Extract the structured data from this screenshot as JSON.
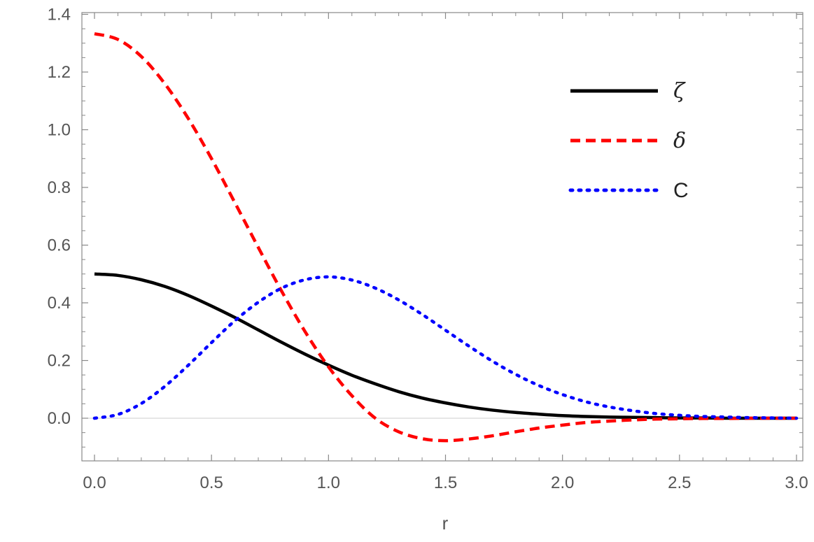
{
  "chart_data": {
    "type": "line",
    "title": "",
    "xlabel": "r",
    "ylabel": "",
    "xlim": [
      0,
      3
    ],
    "ylim": [
      -0.15,
      1.4
    ],
    "xticks": [
      "0.0",
      "0.5",
      "1.0",
      "1.5",
      "2.0",
      "2.5",
      "3.0"
    ],
    "yticks": [
      "0.0",
      "0.2",
      "0.4",
      "0.6",
      "0.8",
      "1.0",
      "1.2",
      "1.4"
    ],
    "grid": false,
    "legend_position": "top-right",
    "x": [
      0,
      0.1,
      0.2,
      0.3,
      0.4,
      0.5,
      0.6,
      0.7,
      0.8,
      0.9,
      1.0,
      1.1,
      1.2,
      1.3,
      1.4,
      1.5,
      1.6,
      1.7,
      1.8,
      1.9,
      2.0,
      2.1,
      2.2,
      2.3,
      2.4,
      2.5,
      2.6,
      2.7,
      2.8,
      2.9,
      3.0
    ],
    "series": [
      {
        "name": "ζ",
        "color": "#000000",
        "style": "solid",
        "values": [
          0.5,
          0.495,
          0.48,
          0.457,
          0.426,
          0.389,
          0.349,
          0.306,
          0.263,
          0.222,
          0.184,
          0.149,
          0.119,
          0.092,
          0.07,
          0.053,
          0.039,
          0.028,
          0.02,
          0.014,
          0.009,
          0.006,
          0.004,
          0.003,
          0.002,
          0.001,
          0.001,
          0.0,
          0.0,
          0.0,
          0.0
        ]
      },
      {
        "name": "δ",
        "color": "#ff0000",
        "style": "dashed",
        "values": [
          1.333,
          1.313,
          1.254,
          1.16,
          1.04,
          0.9,
          0.747,
          0.592,
          0.44,
          0.3,
          0.178,
          0.078,
          0.0,
          -0.047,
          -0.071,
          -0.078,
          -0.072,
          -0.061,
          -0.047,
          -0.034,
          -0.024,
          -0.015,
          -0.01,
          -0.006,
          -0.003,
          -0.002,
          -0.001,
          -0.001,
          0.0,
          0.0,
          0.0
        ]
      },
      {
        "name": "C",
        "color": "#0000ff",
        "style": "dotted",
        "values": [
          0.0,
          0.013,
          0.051,
          0.11,
          0.183,
          0.262,
          0.338,
          0.402,
          0.451,
          0.48,
          0.49,
          0.479,
          0.451,
          0.41,
          0.36,
          0.305,
          0.25,
          0.198,
          0.152,
          0.113,
          0.082,
          0.057,
          0.039,
          0.026,
          0.016,
          0.01,
          0.006,
          0.004,
          0.002,
          0.001,
          0.0
        ]
      }
    ]
  }
}
